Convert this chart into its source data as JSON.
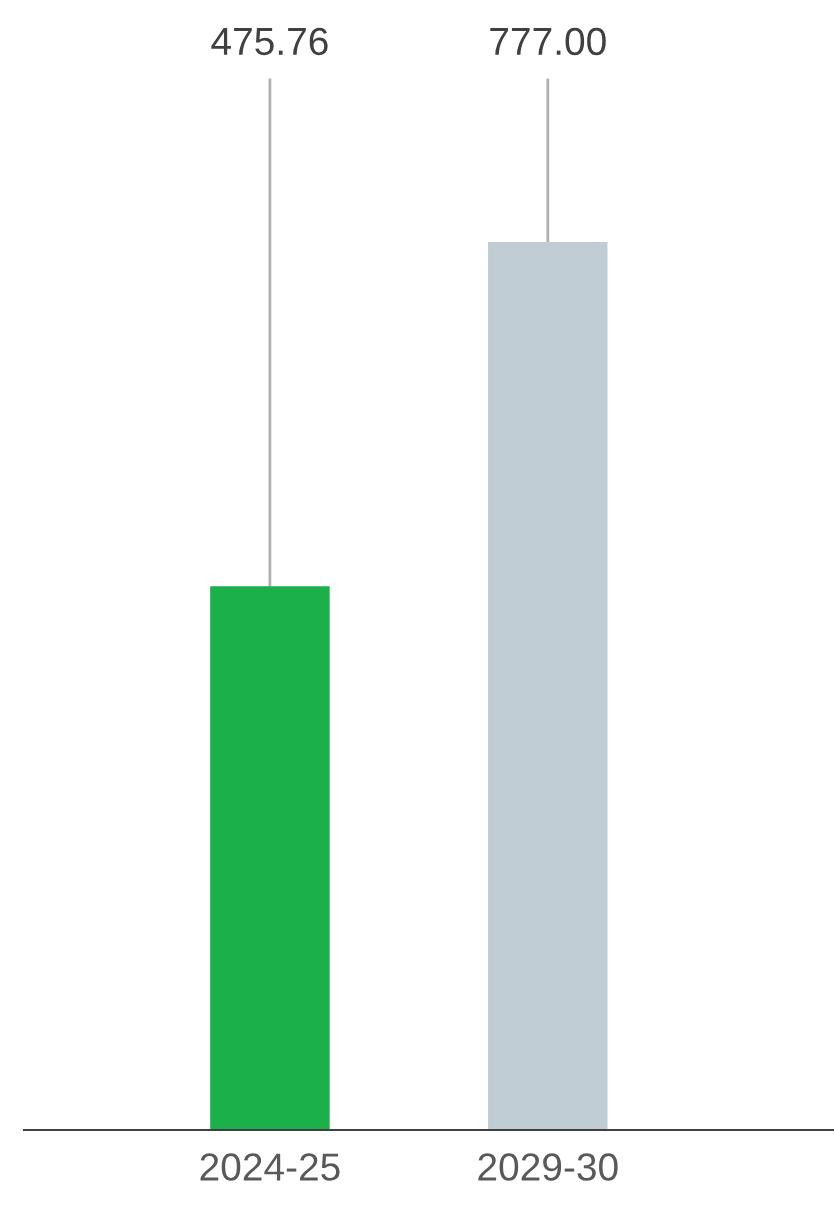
{
  "chart_data": {
    "type": "bar",
    "categories": [
      "2024-25",
      "2029-30"
    ],
    "values": [
      475.76,
      777.0
    ],
    "colors": [
      "#1bb04a",
      "#c0cdd4"
    ],
    "value_labels": [
      "475.76",
      "777.00"
    ],
    "tick_labels": "x",
    "grid": false,
    "legend": false
  }
}
